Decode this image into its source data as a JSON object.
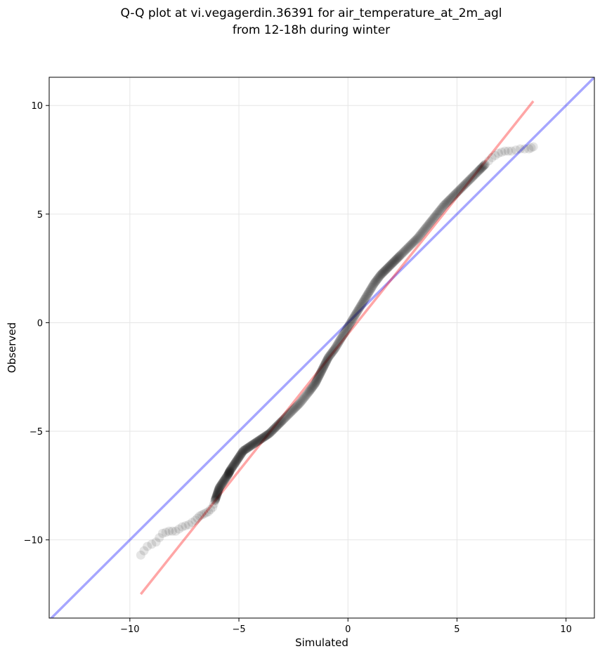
{
  "chart_data": {
    "type": "scatter",
    "title": "Q-Q plot at vi.vegagerdin.36391 for air_temperature_at_2m_agl",
    "subtitle": "from 12-18h during winter",
    "xlabel": "Simulated",
    "ylabel": "Observed",
    "xlim": [
      -13.7,
      11.3
    ],
    "ylim": [
      -13.6,
      11.3
    ],
    "xticks": [
      -10,
      -5,
      0,
      5,
      10
    ],
    "yticks": [
      -10,
      -5,
      0,
      5,
      10
    ],
    "xtick_labels": [
      "−10",
      "−5",
      "0",
      "5",
      "10"
    ],
    "ytick_labels": [
      "−10",
      "−5",
      "0",
      "5",
      "10"
    ],
    "grid": true,
    "colors": {
      "points": "#000000",
      "identity_line": "#0000ff",
      "fit_line": "#ff0000"
    },
    "identity_line": {
      "x": [
        -13.7,
        11.3
      ],
      "y": [
        -13.7,
        11.3
      ]
    },
    "fit_line": {
      "x": [
        -9.5,
        8.5
      ],
      "y": [
        -12.5,
        10.2
      ]
    },
    "quantile_curve": {
      "x": [
        -9.5,
        -9.2,
        -8.8,
        -8.5,
        -8.2,
        -7.9,
        -7.6,
        -7.3,
        -7.0,
        -6.8,
        -6.6,
        -6.4,
        -6.2,
        -6.1,
        -6.0,
        -5.9,
        -5.7,
        -5.5,
        -5.4,
        -5.2,
        -5.0,
        -4.8,
        -4.5,
        -4.2,
        -3.9,
        -3.6,
        -3.3,
        -3.0,
        -2.6,
        -2.2,
        -1.8,
        -1.5,
        -1.3,
        -1.1,
        -0.9,
        -0.6,
        -0.3,
        0.0,
        0.3,
        0.6,
        0.9,
        1.2,
        1.5,
        1.8,
        2.1,
        2.4,
        2.8,
        3.2,
        3.6,
        4.0,
        4.4,
        4.8,
        5.2,
        5.6,
        6.0,
        6.3,
        6.6,
        6.9,
        7.2,
        7.5,
        7.9,
        8.3,
        8.5
      ],
      "y": [
        -10.7,
        -10.3,
        -10.1,
        -9.7,
        -9.6,
        -9.6,
        -9.4,
        -9.3,
        -9.1,
        -8.9,
        -8.8,
        -8.7,
        -8.5,
        -8.2,
        -7.9,
        -7.6,
        -7.3,
        -7.0,
        -6.8,
        -6.5,
        -6.2,
        -5.9,
        -5.7,
        -5.5,
        -5.3,
        -5.1,
        -4.8,
        -4.5,
        -4.1,
        -3.7,
        -3.2,
        -2.8,
        -2.4,
        -2.0,
        -1.6,
        -1.2,
        -0.7,
        -0.2,
        0.3,
        0.8,
        1.3,
        1.8,
        2.2,
        2.5,
        2.8,
        3.1,
        3.5,
        3.9,
        4.4,
        4.9,
        5.4,
        5.8,
        6.2,
        6.6,
        7.0,
        7.3,
        7.6,
        7.8,
        7.9,
        7.9,
        8.0,
        8.0,
        8.1
      ]
    }
  }
}
